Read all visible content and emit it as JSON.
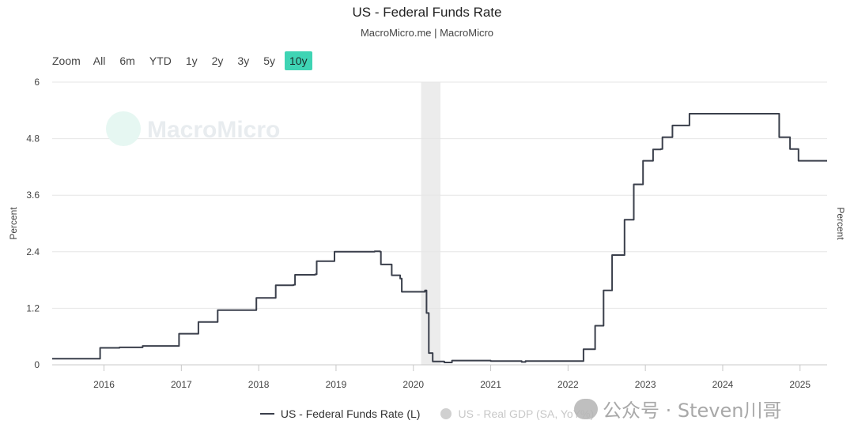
{
  "header": {
    "title": "US - Federal Funds Rate",
    "subtitle": "MacroMicro.me | MacroMicro"
  },
  "zoom": {
    "label": "Zoom",
    "buttons": [
      "All",
      "6m",
      "YTD",
      "1y",
      "2y",
      "3y",
      "5y",
      "10y"
    ],
    "active": "10y"
  },
  "plot_watermark": "MacroMicro",
  "legend": {
    "series1": "US - Federal Funds Rate (L)",
    "series2": "US - Real GDP (SA, YoY%)"
  },
  "overlay_watermark": "公众号 · Steven川哥",
  "colors": {
    "series_line": "#3a3f4b",
    "accent": "#3fd4b4",
    "recession_band": "#ececec",
    "grid": "#e6e6e6"
  },
  "chart_data": {
    "type": "line",
    "title": "US - Federal Funds Rate",
    "ylabel_left": "Percent",
    "ylabel_right": "Percent",
    "ylim": [
      0,
      6
    ],
    "yticks": [
      "0",
      "1.2",
      "2.4",
      "3.6",
      "4.8",
      "6"
    ],
    "xlim": [
      2015.33,
      2025.35
    ],
    "xticks": [
      "2016",
      "2017",
      "2018",
      "2019",
      "2020",
      "2021",
      "2022",
      "2023",
      "2024",
      "2025"
    ],
    "grid": true,
    "recession_band": [
      2020.1,
      2020.35
    ],
    "series": [
      {
        "name": "US - Federal Funds Rate (L)",
        "points": [
          [
            2015.33,
            0.13
          ],
          [
            2015.92,
            0.13
          ],
          [
            2015.95,
            0.36
          ],
          [
            2016.2,
            0.37
          ],
          [
            2016.5,
            0.4
          ],
          [
            2016.95,
            0.4
          ],
          [
            2016.97,
            0.66
          ],
          [
            2017.2,
            0.66
          ],
          [
            2017.22,
            0.91
          ],
          [
            2017.45,
            0.91
          ],
          [
            2017.47,
            1.16
          ],
          [
            2017.95,
            1.16
          ],
          [
            2017.97,
            1.42
          ],
          [
            2018.2,
            1.42
          ],
          [
            2018.22,
            1.69
          ],
          [
            2018.45,
            1.7
          ],
          [
            2018.47,
            1.91
          ],
          [
            2018.73,
            1.92
          ],
          [
            2018.75,
            2.2
          ],
          [
            2018.97,
            2.2
          ],
          [
            2018.98,
            2.4
          ],
          [
            2019.35,
            2.4
          ],
          [
            2019.5,
            2.41
          ],
          [
            2019.57,
            2.4
          ],
          [
            2019.58,
            2.13
          ],
          [
            2019.7,
            2.13
          ],
          [
            2019.72,
            1.9
          ],
          [
            2019.83,
            1.83
          ],
          [
            2019.85,
            1.55
          ],
          [
            2020.15,
            1.58
          ],
          [
            2020.17,
            1.1
          ],
          [
            2020.2,
            0.25
          ],
          [
            2020.25,
            0.07
          ],
          [
            2020.4,
            0.05
          ],
          [
            2020.5,
            0.09
          ],
          [
            2021.0,
            0.08
          ],
          [
            2021.4,
            0.06
          ],
          [
            2021.45,
            0.08
          ],
          [
            2022.18,
            0.08
          ],
          [
            2022.2,
            0.33
          ],
          [
            2022.34,
            0.33
          ],
          [
            2022.35,
            0.83
          ],
          [
            2022.45,
            0.83
          ],
          [
            2022.46,
            1.58
          ],
          [
            2022.55,
            1.58
          ],
          [
            2022.57,
            2.33
          ],
          [
            2022.72,
            2.33
          ],
          [
            2022.73,
            3.08
          ],
          [
            2022.83,
            3.08
          ],
          [
            2022.85,
            3.83
          ],
          [
            2022.95,
            3.83
          ],
          [
            2022.97,
            4.33
          ],
          [
            2023.08,
            4.33
          ],
          [
            2023.1,
            4.57
          ],
          [
            2023.2,
            4.58
          ],
          [
            2023.22,
            4.83
          ],
          [
            2023.33,
            4.83
          ],
          [
            2023.35,
            5.08
          ],
          [
            2023.55,
            5.08
          ],
          [
            2023.57,
            5.33
          ],
          [
            2024.72,
            5.33
          ],
          [
            2024.73,
            4.83
          ],
          [
            2024.85,
            4.83
          ],
          [
            2024.87,
            4.58
          ],
          [
            2024.96,
            4.58
          ],
          [
            2024.98,
            4.33
          ],
          [
            2025.35,
            4.33
          ]
        ]
      }
    ]
  }
}
